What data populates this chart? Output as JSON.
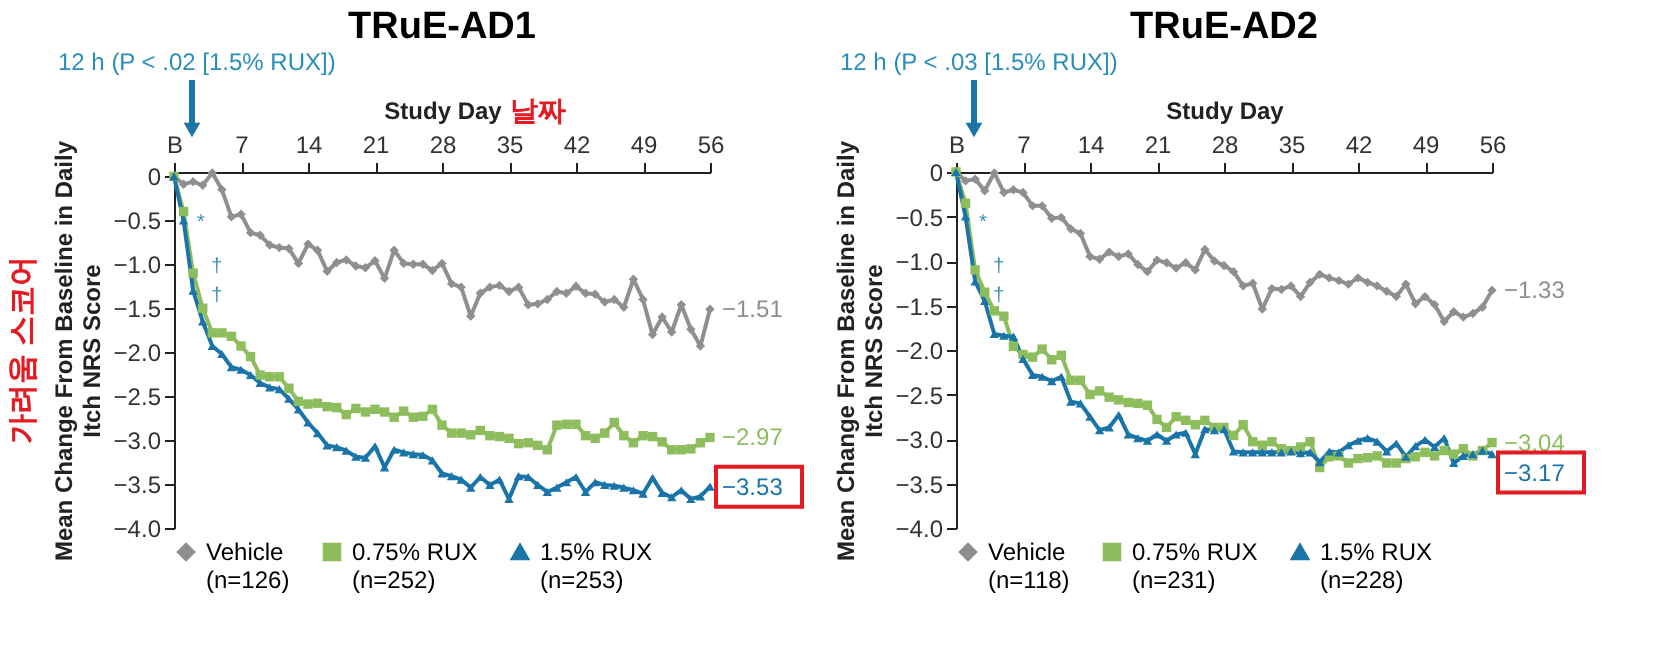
{
  "chart_data": [
    {
      "type": "line",
      "title": "TRuE-AD1",
      "xlabel": "Study Day",
      "ylabel": "Mean Change From Baseline in Daily Itch NRS Score",
      "x": [
        0,
        1,
        2,
        3,
        4,
        5,
        6,
        7,
        8,
        9,
        10,
        11,
        12,
        13,
        14,
        15,
        16,
        17,
        18,
        19,
        20,
        21,
        22,
        23,
        24,
        25,
        26,
        27,
        28,
        29,
        30,
        31,
        32,
        33,
        34,
        35,
        36,
        37,
        38,
        39,
        40,
        41,
        42,
        43,
        44,
        45,
        46,
        47,
        48,
        49,
        50,
        51,
        52,
        53,
        54,
        55,
        56
      ],
      "xlim": [
        0,
        56
      ],
      "xticks": [
        {
          "value": 0,
          "label": "B"
        },
        7,
        14,
        21,
        28,
        35,
        42,
        49,
        56
      ],
      "ylim": [
        -4.0,
        0.05
      ],
      "yticks": [
        0,
        {
          "value": -0.5,
          "label": "−0.5"
        },
        {
          "value": -1.0,
          "label": "−1.0"
        },
        {
          "value": -1.5,
          "label": "−1.5"
        },
        {
          "value": -2.0,
          "label": "−2.0"
        },
        {
          "value": -2.5,
          "label": "−2.5"
        },
        {
          "value": -3.0,
          "label": "−3.0"
        },
        {
          "value": -3.5,
          "label": "−3.5"
        },
        {
          "value": -4.0,
          "label": "−4.0"
        }
      ],
      "grid": false,
      "legend": "bottom",
      "series": [
        {
          "name": "Vehicle\n(n=126)",
          "color": "#8f8f8f",
          "marker": "diamond",
          "values": [
            0,
            -0.09,
            -0.06,
            -0.1,
            0.04,
            -0.15,
            -0.46,
            -0.43,
            -0.64,
            -0.67,
            -0.78,
            -0.81,
            -0.82,
            -0.99,
            -0.77,
            -0.84,
            -1.08,
            -0.98,
            -0.95,
            -1.02,
            -1.04,
            -0.96,
            -1.16,
            -0.84,
            -0.99,
            -1.0,
            -1.0,
            -1.07,
            -0.99,
            -1.22,
            -1.26,
            -1.59,
            -1.33,
            -1.26,
            -1.24,
            -1.31,
            -1.26,
            -1.46,
            -1.45,
            -1.4,
            -1.31,
            -1.33,
            -1.25,
            -1.33,
            -1.34,
            -1.43,
            -1.4,
            -1.49,
            -1.17,
            -1.4,
            -1.8,
            -1.6,
            -1.77,
            -1.46,
            -1.74,
            -1.93,
            -1.51
          ],
          "value_labels": [
            null,
            null,
            null,
            null,
            null,
            null,
            null,
            null,
            null,
            null,
            null,
            null,
            null,
            null,
            null,
            null,
            null,
            null,
            null,
            null,
            null,
            null,
            null,
            null,
            null,
            null,
            null,
            null,
            null,
            null,
            null,
            null,
            null,
            null,
            null,
            null,
            null,
            null,
            null,
            null,
            null,
            null,
            null,
            null,
            null,
            null,
            null,
            null,
            null,
            null,
            null,
            null,
            null,
            null,
            null,
            null,
            "−1.51"
          ]
        },
        {
          "name": "0.75% RUX\n(n=252)",
          "color": "#8dbd5c",
          "marker": "square",
          "values": [
            0,
            -0.4,
            -1.1,
            -1.5,
            -1.78,
            -1.78,
            -1.82,
            -1.93,
            -2.05,
            -2.26,
            -2.28,
            -2.28,
            -2.41,
            -2.56,
            -2.59,
            -2.58,
            -2.62,
            -2.63,
            -2.71,
            -2.64,
            -2.68,
            -2.65,
            -2.68,
            -2.74,
            -2.67,
            -2.74,
            -2.73,
            -2.65,
            -2.83,
            -2.92,
            -2.92,
            -2.94,
            -2.89,
            -2.95,
            -2.96,
            -2.98,
            -3.04,
            -3.03,
            -3.06,
            -3.11,
            -2.83,
            -2.82,
            -2.82,
            -2.95,
            -2.98,
            -2.92,
            -2.8,
            -2.95,
            -3.03,
            -2.95,
            -2.96,
            -3.02,
            -3.11,
            -3.11,
            -3.1,
            -3.03,
            -2.97
          ],
          "value_labels": [
            null,
            null,
            null,
            null,
            null,
            null,
            null,
            null,
            null,
            null,
            null,
            null,
            null,
            null,
            null,
            null,
            null,
            null,
            null,
            null,
            null,
            null,
            null,
            null,
            null,
            null,
            null,
            null,
            null,
            null,
            null,
            null,
            null,
            null,
            null,
            null,
            null,
            null,
            null,
            null,
            null,
            null,
            null,
            null,
            null,
            null,
            null,
            null,
            null,
            null,
            null,
            null,
            null,
            null,
            null,
            null,
            "−2.97"
          ]
        },
        {
          "name": "1.5% RUX\n(n=253)",
          "color": "#1a74a8",
          "marker": "triangle",
          "values": [
            0,
            -0.5,
            -1.3,
            -1.65,
            -1.93,
            -2.02,
            -2.17,
            -2.2,
            -2.26,
            -2.35,
            -2.4,
            -2.42,
            -2.53,
            -2.65,
            -2.8,
            -2.92,
            -3.06,
            -3.08,
            -3.12,
            -3.19,
            -3.2,
            -3.07,
            -3.31,
            -3.11,
            -3.14,
            -3.16,
            -3.17,
            -3.23,
            -3.38,
            -3.41,
            -3.45,
            -3.54,
            -3.42,
            -3.51,
            -3.45,
            -3.67,
            -3.41,
            -3.42,
            -3.51,
            -3.59,
            -3.54,
            -3.48,
            -3.42,
            -3.59,
            -3.48,
            -3.51,
            -3.52,
            -3.54,
            -3.57,
            -3.61,
            -3.43,
            -3.6,
            -3.65,
            -3.57,
            -3.67,
            -3.64,
            -3.53
          ],
          "value_labels": [
            null,
            null,
            null,
            null,
            null,
            null,
            null,
            null,
            null,
            null,
            null,
            null,
            null,
            null,
            null,
            null,
            null,
            null,
            null,
            null,
            null,
            null,
            null,
            null,
            null,
            null,
            null,
            null,
            null,
            null,
            null,
            null,
            null,
            null,
            null,
            null,
            null,
            null,
            null,
            null,
            null,
            null,
            null,
            null,
            null,
            null,
            null,
            null,
            null,
            null,
            null,
            null,
            null,
            null,
            null,
            null,
            "−3.53"
          ]
        }
      ],
      "annotations": [
        "12 h (P < .02 [1.5% RUX])",
        "날짜",
        "가려움 스코어",
        "*",
        "†",
        "†"
      ]
    },
    {
      "type": "line",
      "title": "TRuE-AD2",
      "xlabel": "Study Day",
      "ylabel": "Mean Change From Baseline in Daily Itch NRS Score",
      "x": [
        0,
        1,
        2,
        3,
        4,
        5,
        6,
        7,
        8,
        9,
        10,
        11,
        12,
        13,
        14,
        15,
        16,
        17,
        18,
        19,
        20,
        21,
        22,
        23,
        24,
        25,
        26,
        27,
        28,
        29,
        30,
        31,
        32,
        33,
        34,
        35,
        36,
        37,
        38,
        39,
        40,
        41,
        42,
        43,
        44,
        45,
        46,
        47,
        48,
        49,
        50,
        51,
        52,
        53,
        54,
        55,
        56
      ],
      "xlim": [
        0,
        56
      ],
      "xticks": [
        {
          "value": 0,
          "label": "B"
        },
        7,
        14,
        21,
        28,
        35,
        42,
        49,
        56
      ],
      "ylim": [
        -4.0,
        0
      ],
      "yticks": [
        0,
        {
          "value": -0.5,
          "label": "−0.5"
        },
        {
          "value": -1.0,
          "label": "−1.0"
        },
        {
          "value": -1.5,
          "label": "−1.5"
        },
        {
          "value": -2.0,
          "label": "−2.0"
        },
        {
          "value": -2.5,
          "label": "−2.5"
        },
        {
          "value": -3.0,
          "label": "−3.0"
        },
        {
          "value": -3.5,
          "label": "−3.5"
        },
        {
          "value": -4.0,
          "label": "−4.0"
        }
      ],
      "grid": false,
      "legend": "bottom",
      "series": [
        {
          "name": "Vehicle\n(n=118)",
          "color": "#8f8f8f",
          "marker": "diamond",
          "values": [
            0,
            -0.1,
            -0.08,
            -0.21,
            -0.01,
            -0.23,
            -0.2,
            -0.23,
            -0.38,
            -0.38,
            -0.52,
            -0.51,
            -0.64,
            -0.69,
            -0.95,
            -0.98,
            -0.9,
            -0.95,
            -0.92,
            -1.04,
            -1.12,
            -0.99,
            -1.02,
            -1.08,
            -1.02,
            -1.1,
            -0.87,
            -1.0,
            -1.05,
            -1.12,
            -1.28,
            -1.25,
            -1.54,
            -1.31,
            -1.32,
            -1.28,
            -1.4,
            -1.24,
            -1.15,
            -1.19,
            -1.22,
            -1.26,
            -1.19,
            -1.24,
            -1.28,
            -1.34,
            -1.4,
            -1.26,
            -1.48,
            -1.4,
            -1.49,
            -1.68,
            -1.57,
            -1.63,
            -1.59,
            -1.52,
            -1.33
          ],
          "value_labels": [
            null,
            null,
            null,
            null,
            null,
            null,
            null,
            null,
            null,
            null,
            null,
            null,
            null,
            null,
            null,
            null,
            null,
            null,
            null,
            null,
            null,
            null,
            null,
            null,
            null,
            null,
            null,
            null,
            null,
            null,
            null,
            null,
            null,
            null,
            null,
            null,
            null,
            null,
            null,
            null,
            null,
            null,
            null,
            null,
            null,
            null,
            null,
            null,
            null,
            null,
            null,
            null,
            null,
            null,
            null,
            null,
            "−1.33"
          ]
        },
        {
          "name": "0.75% RUX\n(n=231)",
          "color": "#8dbd5c",
          "marker": "square",
          "values": [
            0,
            -0.35,
            -1.1,
            -1.35,
            -1.56,
            -1.62,
            -1.96,
            -2.05,
            -2.08,
            -1.99,
            -2.11,
            -2.06,
            -2.34,
            -2.34,
            -2.5,
            -2.46,
            -2.53,
            -2.56,
            -2.59,
            -2.6,
            -2.62,
            -2.78,
            -2.87,
            -2.75,
            -2.79,
            -2.84,
            -2.79,
            -2.87,
            -2.87,
            -2.96,
            -2.84,
            -3.03,
            -3.07,
            -3.03,
            -3.11,
            -3.13,
            -3.09,
            -3.03,
            -3.32,
            -3.2,
            -3.19,
            -3.27,
            -3.22,
            -3.21,
            -3.19,
            -3.27,
            -3.27,
            -3.22,
            -3.2,
            -3.15,
            -3.19,
            -3.13,
            -3.17,
            -3.11,
            -3.19,
            -3.13,
            -3.04
          ],
          "value_labels": [
            null,
            null,
            null,
            null,
            null,
            null,
            null,
            null,
            null,
            null,
            null,
            null,
            null,
            null,
            null,
            null,
            null,
            null,
            null,
            null,
            null,
            null,
            null,
            null,
            null,
            null,
            null,
            null,
            null,
            null,
            null,
            null,
            null,
            null,
            null,
            null,
            null,
            null,
            null,
            null,
            null,
            null,
            null,
            null,
            null,
            null,
            null,
            null,
            null,
            null,
            null,
            null,
            null,
            null,
            null,
            null,
            "−3.04"
          ]
        },
        {
          "name": "1.5% RUX\n(n=228)",
          "color": "#1a74a8",
          "marker": "triangle",
          "values": [
            0,
            -0.5,
            -1.23,
            -1.45,
            -1.82,
            -1.84,
            -1.85,
            -2.1,
            -2.28,
            -2.3,
            -2.35,
            -2.3,
            -2.58,
            -2.6,
            -2.75,
            -2.9,
            -2.87,
            -2.73,
            -2.95,
            -2.99,
            -3.02,
            -2.95,
            -3.02,
            -2.95,
            -2.93,
            -3.17,
            -2.89,
            -2.9,
            -2.89,
            -3.14,
            -3.15,
            -3.15,
            -3.15,
            -3.15,
            -3.15,
            -3.14,
            -3.16,
            -3.15,
            -3.26,
            -3.14,
            -3.15,
            -3.07,
            -3.02,
            -2.99,
            -3.03,
            -3.14,
            -3.05,
            -3.2,
            -3.08,
            -3.01,
            -3.09,
            -2.99,
            -3.27,
            -3.19,
            -3.17,
            -3.13,
            -3.17
          ],
          "value_labels": [
            null,
            null,
            null,
            null,
            null,
            null,
            null,
            null,
            null,
            null,
            null,
            null,
            null,
            null,
            null,
            null,
            null,
            null,
            null,
            null,
            null,
            null,
            null,
            null,
            null,
            null,
            null,
            null,
            null,
            null,
            null,
            null,
            null,
            null,
            null,
            null,
            null,
            null,
            null,
            null,
            null,
            null,
            null,
            null,
            null,
            null,
            null,
            null,
            null,
            null,
            null,
            null,
            null,
            null,
            null,
            null,
            "−3.17"
          ]
        }
      ],
      "annotations": [
        "12 h (P < .03 [1.5% RUX])",
        "*",
        "†",
        "†"
      ]
    }
  ]
}
